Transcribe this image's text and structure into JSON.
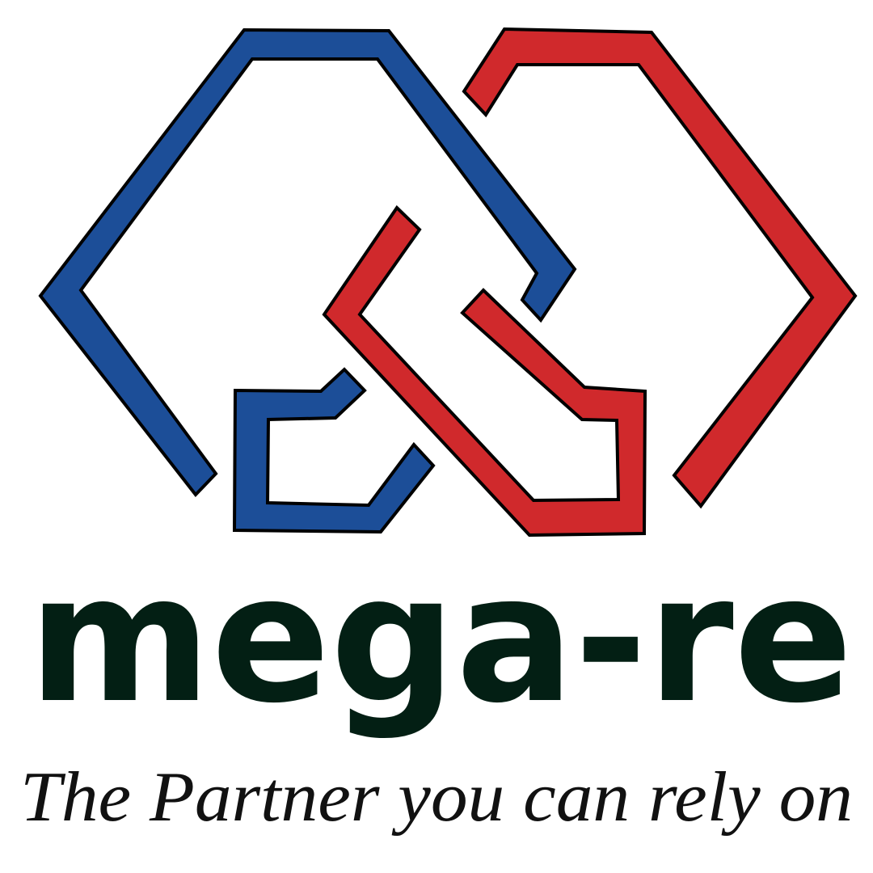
{
  "logo": {
    "name": "mega-re",
    "tagline": "The Partner you can rely on"
  }
}
